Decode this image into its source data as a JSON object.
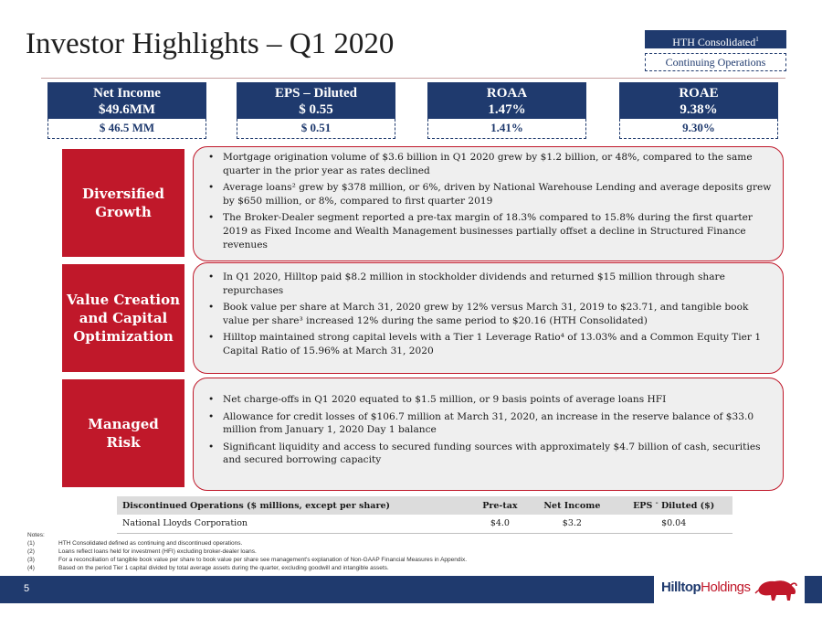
{
  "title": "Investor Highlights – Q1 2020",
  "legend": {
    "consolidated": "HTH Consolidated",
    "consolidated_sup": "1",
    "continuing": "Continuing Operations"
  },
  "metrics": [
    {
      "label": "Net Income",
      "consolidated": "$49.6MM",
      "continuing": "$ 46.5 MM"
    },
    {
      "label": "EPS – Diluted",
      "consolidated": "$ 0.55",
      "continuing": "$ 0.51"
    },
    {
      "label": "ROAA",
      "consolidated": "1.47%",
      "continuing": "1.41%"
    },
    {
      "label": "ROAE",
      "consolidated": "9.38%",
      "continuing": "9.30%"
    }
  ],
  "sections": [
    {
      "label": "Diversified Growth",
      "bullets": [
        "Mortgage origination volume of $3.6 billion in Q1 2020 grew by $1.2 billion, or 48%, compared to the same quarter in the prior year as rates declined",
        "Average loans² grew by $378 million, or 6%, driven by National Warehouse Lending and average deposits grew by $650 million, or 8%, compared to first quarter 2019",
        "The Broker-Dealer segment reported a pre-tax margin of 18.3% compared to 15.8% during the first quarter 2019 as Fixed Income and Wealth Management businesses partially offset a decline in Structured Finance revenues"
      ]
    },
    {
      "label": "Value Creation and Capital Optimization",
      "bullets": [
        "In Q1 2020, Hilltop paid $8.2 million in stockholder dividends and returned $15 million through share repurchases",
        "Book value per share at March 31, 2020 grew by 12% versus March 31, 2019 to $23.71, and tangible book value per share³ increased 12% during the same period to $20.16 (HTH Consolidated)",
        "Hilltop maintained strong capital levels with a Tier 1 Leverage Ratio⁴ of 13.03% and a Common Equity Tier 1 Capital Ratio of 15.96% at March 31, 2020"
      ]
    },
    {
      "label": "Managed Risk",
      "bullets": [
        "Net charge-offs in Q1 2020 equated to $1.5 million, or 9 basis points of average loans HFI",
        "Allowance for credit losses of $106.7 million at March 31, 2020, an increase in the reserve balance of $33.0 million from January 1, 2020 Day 1 balance",
        "Significant liquidity and access to secured funding sources with approximately $4.7 billion of cash, securities and secured borrowing capacity"
      ]
    }
  ],
  "discontinued_table": {
    "headers": [
      "Discontinued Operations ($ millions, except per share)",
      "Pre-tax",
      "Net Income",
      "EPS",
      "Diluted ($)"
    ],
    "eps_sup": "–",
    "rows": [
      [
        "National Lloyds Corporation",
        "$4.0",
        "$3.2",
        "$0.04"
      ]
    ]
  },
  "notes": {
    "heading": "Notes:",
    "items": [
      {
        "num": "(1)",
        "text": "HTH Consolidated defined as continuing and discontinued operations."
      },
      {
        "num": "(2)",
        "text": "Loans reflect loans held for investment (HFI) excluding broker-dealer loans."
      },
      {
        "num": "(3)",
        "text": "For a reconciliation of tangible book value per share to book value per share see management's explanation of Non-GAAP Financial Measures in Appendix."
      },
      {
        "num": "(4)",
        "text": "Based on the period Tier 1 capital divided by total average assets during the quarter, excluding goodwill and intangible assets."
      }
    ]
  },
  "footer": {
    "page_number": "5",
    "logo_bold": "Hilltop",
    "logo_light": "Holdings",
    "logo_icon": "bison-icon"
  },
  "colors": {
    "navy": "#1f3a6e",
    "red": "#c0182a",
    "panel_gray": "#efefef"
  }
}
